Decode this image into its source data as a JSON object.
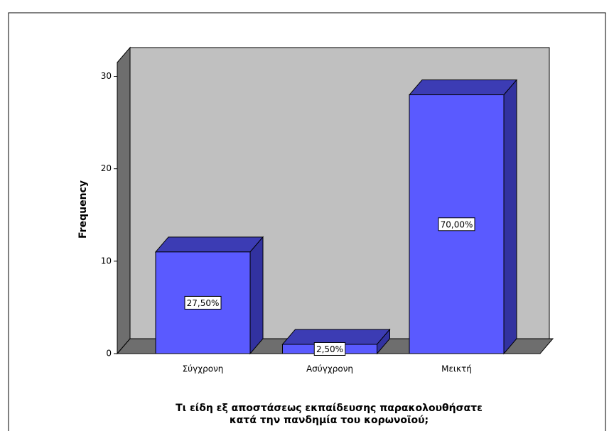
{
  "chart_data": {
    "type": "bar3d",
    "categories": [
      "Σύγχρονη",
      "Ασύγχρονη",
      "Μεικτή"
    ],
    "values": [
      11,
      1,
      28
    ],
    "percent_values": [
      27.5,
      2.5,
      70
    ],
    "percent_labels": [
      "27,50%",
      "2,50%",
      "70,00%"
    ],
    "color": "#5a5aff",
    "ylabel": "Frequency",
    "xlabel": [
      "Τι είδη εξ αποστάσεως εκπαίδευσης παρακολουθήσατε",
      "κατά την πανδημία του κορωνοϊού;"
    ],
    "ylim": [
      0,
      31.5
    ],
    "yticks": [
      0,
      10,
      20,
      30
    ]
  }
}
